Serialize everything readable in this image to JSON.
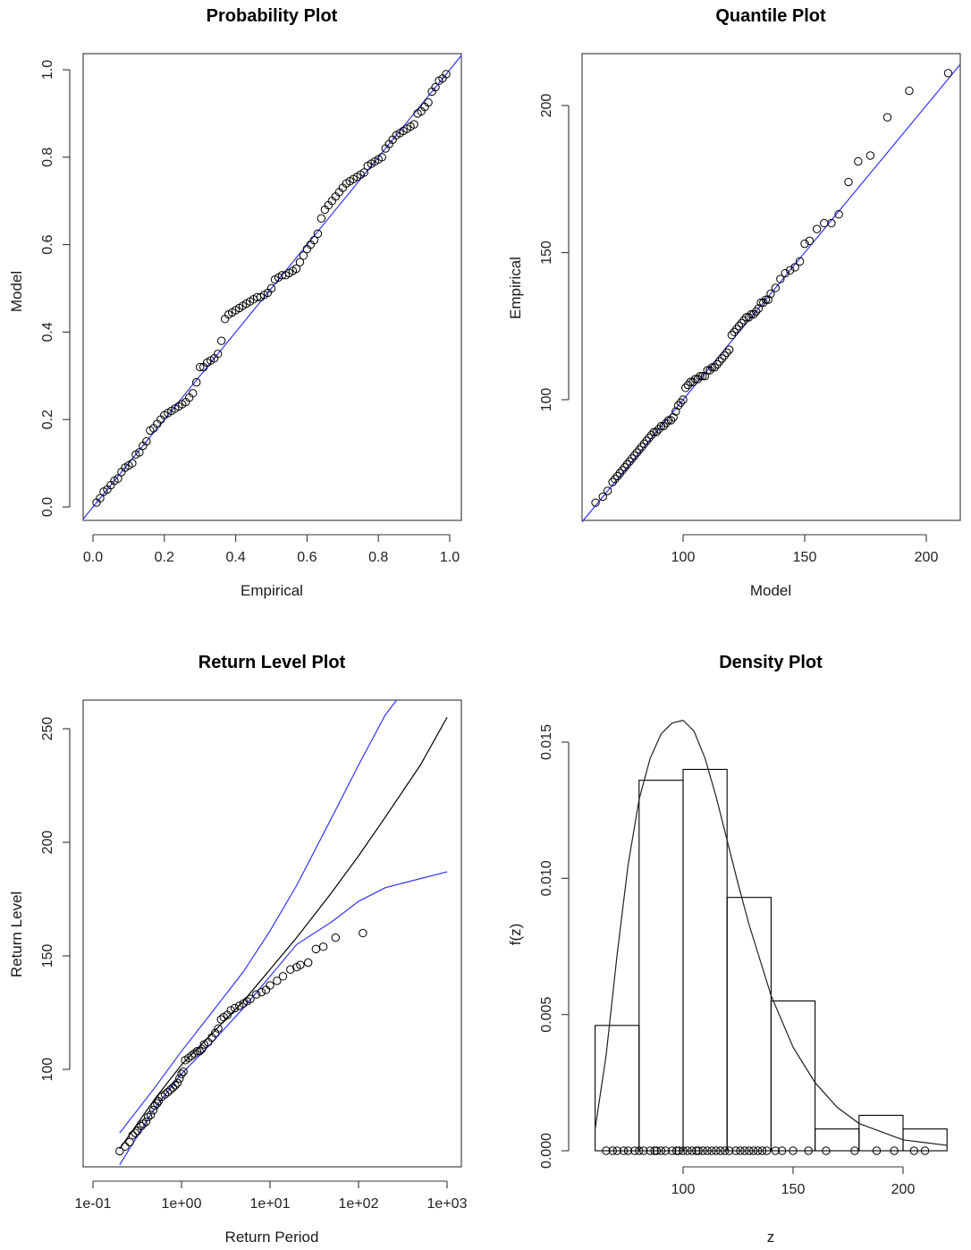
{
  "chart_data": [
    {
      "type": "scatter",
      "title": "Probability Plot",
      "xlabel": "Empirical",
      "ylabel": "Model",
      "xlim": [
        0,
        1
      ],
      "ylim": [
        0,
        1
      ],
      "x_ticks": [
        "0.0",
        "0.2",
        "0.4",
        "0.6",
        "0.8",
        "1.0"
      ],
      "y_ticks": [
        "0.0",
        "0.2",
        "0.4",
        "0.6",
        "0.8",
        "1.0"
      ],
      "reference_line": {
        "x": [
          0,
          1
        ],
        "y": [
          0,
          1
        ],
        "color": "#3333ff"
      },
      "series": [
        {
          "x": [
            0.01,
            0.02,
            0.03,
            0.04,
            0.05,
            0.06,
            0.07,
            0.08,
            0.09,
            0.1,
            0.11,
            0.12,
            0.13,
            0.14,
            0.15,
            0.16,
            0.17,
            0.18,
            0.19,
            0.2,
            0.21,
            0.22,
            0.23,
            0.24,
            0.25,
            0.26,
            0.27,
            0.28,
            0.29,
            0.3,
            0.31,
            0.32,
            0.33,
            0.34,
            0.35,
            0.36,
            0.37,
            0.38,
            0.39,
            0.4,
            0.41,
            0.42,
            0.43,
            0.44,
            0.45,
            0.46,
            0.47,
            0.48,
            0.49,
            0.5,
            0.51,
            0.52,
            0.53,
            0.54,
            0.55,
            0.56,
            0.57,
            0.58,
            0.59,
            0.6,
            0.61,
            0.62,
            0.63,
            0.64,
            0.65,
            0.66,
            0.67,
            0.68,
            0.69,
            0.7,
            0.71,
            0.72,
            0.73,
            0.74,
            0.75,
            0.76,
            0.77,
            0.78,
            0.79,
            0.8,
            0.81,
            0.82,
            0.83,
            0.84,
            0.85,
            0.86,
            0.87,
            0.88,
            0.89,
            0.9,
            0.91,
            0.92,
            0.93,
            0.94,
            0.95,
            0.96,
            0.97,
            0.98,
            0.99
          ],
          "y": [
            0.01,
            0.02,
            0.035,
            0.04,
            0.05,
            0.06,
            0.065,
            0.08,
            0.09,
            0.095,
            0.1,
            0.12,
            0.125,
            0.14,
            0.15,
            0.175,
            0.18,
            0.19,
            0.2,
            0.21,
            0.215,
            0.22,
            0.225,
            0.23,
            0.235,
            0.24,
            0.25,
            0.26,
            0.285,
            0.32,
            0.32,
            0.33,
            0.335,
            0.34,
            0.35,
            0.38,
            0.43,
            0.44,
            0.445,
            0.45,
            0.455,
            0.46,
            0.465,
            0.47,
            0.475,
            0.48,
            0.48,
            0.485,
            0.49,
            0.5,
            0.52,
            0.525,
            0.53,
            0.53,
            0.535,
            0.54,
            0.545,
            0.56,
            0.575,
            0.59,
            0.6,
            0.61,
            0.625,
            0.66,
            0.68,
            0.69,
            0.7,
            0.71,
            0.72,
            0.73,
            0.74,
            0.745,
            0.75,
            0.755,
            0.76,
            0.765,
            0.78,
            0.785,
            0.79,
            0.795,
            0.8,
            0.82,
            0.83,
            0.84,
            0.85,
            0.855,
            0.86,
            0.865,
            0.87,
            0.875,
            0.9,
            0.905,
            0.915,
            0.925,
            0.95,
            0.96,
            0.975,
            0.98,
            0.99
          ]
        }
      ]
    },
    {
      "type": "scatter",
      "title": "Quantile Plot",
      "xlabel": "Model",
      "ylabel": "Empirical",
      "xlim": [
        60,
        215
      ],
      "ylim": [
        60,
        217
      ],
      "x_ticks": [
        "100",
        "150",
        "200"
      ],
      "y_ticks": [
        "100",
        "150",
        "200"
      ],
      "reference_line": {
        "x": [
          60,
          215
        ],
        "y": [
          60,
          215
        ],
        "color": "#3333ff"
      },
      "series": [
        {
          "x": [
            64,
            67,
            69,
            71,
            72,
            73,
            74,
            75,
            76,
            77,
            78,
            79,
            80,
            81,
            82,
            83,
            84,
            85,
            86,
            87,
            88,
            89,
            90,
            91,
            92,
            93,
            94,
            95,
            96,
            97,
            98,
            99,
            100,
            101,
            102,
            103,
            104,
            105,
            106,
            107,
            108,
            109,
            110,
            111,
            112,
            113,
            114,
            115,
            116,
            117,
            118,
            119,
            120,
            121,
            122,
            123,
            124,
            125,
            126,
            127,
            128,
            129,
            130,
            131,
            132,
            133,
            134,
            135,
            136,
            138,
            140,
            142,
            144,
            146,
            148,
            150,
            152,
            155,
            158,
            161,
            164,
            168,
            172,
            177,
            184,
            193,
            209
          ],
          "y": [
            65,
            67,
            69,
            72,
            73,
            74,
            75,
            76,
            77,
            78,
            79,
            80,
            81,
            82,
            83,
            84,
            85,
            86,
            87,
            88,
            89,
            89,
            90,
            91,
            91,
            92,
            93,
            93,
            94,
            96,
            98,
            99,
            100,
            104,
            105,
            106,
            106,
            107,
            107,
            108,
            108,
            108,
            110,
            110,
            111,
            111,
            112,
            113,
            114,
            115,
            116,
            117,
            122,
            123,
            124,
            125,
            126,
            127,
            128,
            128,
            129,
            129,
            130,
            131,
            133,
            133,
            134,
            134,
            136,
            138,
            141,
            143,
            144,
            145,
            147,
            153,
            154,
            158,
            160,
            160,
            163,
            174,
            181,
            183,
            196,
            205,
            211
          ]
        }
      ]
    },
    {
      "type": "line",
      "title": "Return Level Plot",
      "xlabel": "Return Period",
      "ylabel": "Return Level",
      "x_scale": "log",
      "xlim": [
        0.1,
        1000
      ],
      "ylim": [
        60,
        263
      ],
      "x_ticks": [
        "1e-01",
        "1e+00",
        "1e+01",
        "1e+02",
        "1e+03"
      ],
      "y_ticks": [
        "100",
        "150",
        "200",
        "250"
      ],
      "series": [
        {
          "kind": "line",
          "color": "#000000",
          "x": [
            0.2,
            0.5,
            1,
            2,
            5,
            10,
            20,
            50,
            100,
            200,
            500,
            1000
          ],
          "y": [
            65,
            87,
            102,
            114,
            130,
            144,
            158,
            178,
            194,
            211,
            234,
            255
          ]
        },
        {
          "kind": "line",
          "color": "#3333ff",
          "x": [
            0.2,
            0.5,
            1,
            2,
            5,
            10,
            20,
            50,
            100,
            200,
            300
          ],
          "y": [
            72,
            92,
            108,
            123,
            143,
            161,
            181,
            211,
            234,
            256,
            265
          ]
        },
        {
          "kind": "line",
          "color": "#3333ff",
          "x": [
            0.2,
            0.5,
            1,
            2,
            5,
            10,
            20,
            50,
            100,
            200,
            500,
            1000
          ],
          "y": [
            58,
            83,
            98,
            110,
            127,
            141,
            155,
            165,
            174,
            180,
            184,
            187
          ]
        },
        {
          "kind": "points",
          "x": [
            0.2,
            0.23,
            0.26,
            0.28,
            0.3,
            0.32,
            0.35,
            0.37,
            0.4,
            0.42,
            0.45,
            0.48,
            0.5,
            0.53,
            0.55,
            0.6,
            0.65,
            0.7,
            0.75,
            0.8,
            0.85,
            0.9,
            0.95,
            1.0,
            1.05,
            1.1,
            1.2,
            1.3,
            1.4,
            1.5,
            1.6,
            1.7,
            1.8,
            2.0,
            2.2,
            2.4,
            2.6,
            2.8,
            3.0,
            3.3,
            3.6,
            4.0,
            4.5,
            5.0,
            5.5,
            6.0,
            7.0,
            8.0,
            9.0,
            10,
            12,
            14,
            17,
            20,
            22,
            27,
            33,
            40,
            55,
            112
          ],
          "y": [
            64,
            66,
            68,
            71,
            72,
            73,
            75,
            76,
            77,
            79,
            80,
            82,
            84,
            85,
            86,
            88,
            89,
            90,
            91,
            92,
            93,
            94,
            96,
            98,
            99,
            104,
            105,
            106,
            107,
            108,
            108,
            109,
            111,
            112,
            114,
            116,
            118,
            122,
            123,
            124,
            126,
            127,
            128,
            129,
            130,
            131,
            133,
            134,
            135,
            137,
            139,
            141,
            144,
            145,
            146,
            147,
            153,
            154,
            158,
            160
          ]
        }
      ]
    },
    {
      "type": "bar",
      "title": "Density Plot",
      "xlabel": "z",
      "ylabel": "f(z)",
      "xlim": [
        60,
        222
      ],
      "ylim": [
        0,
        0.0165
      ],
      "x_ticks": [
        "100",
        "150",
        "200"
      ],
      "y_ticks": [
        "0.000",
        "0.005",
        "0.010",
        "0.015"
      ],
      "bins": [
        [
          60,
          80
        ],
        [
          80,
          100
        ],
        [
          100,
          120
        ],
        [
          120,
          140
        ],
        [
          140,
          160
        ],
        [
          160,
          180
        ],
        [
          180,
          200
        ],
        [
          200,
          220
        ]
      ],
      "values": [
        0.0046,
        0.0136,
        0.014,
        0.0093,
        0.0055,
        0.0008,
        0.0013,
        0.0008
      ],
      "density_curve": {
        "x": [
          60,
          65,
          70,
          75,
          80,
          85,
          90,
          95,
          100,
          105,
          110,
          115,
          120,
          125,
          130,
          140,
          150,
          160,
          170,
          180,
          190,
          200,
          210,
          220
        ],
        "y": [
          0.0008,
          0.0035,
          0.0072,
          0.0105,
          0.0129,
          0.0144,
          0.0153,
          0.0157,
          0.0158,
          0.0154,
          0.0144,
          0.013,
          0.0114,
          0.0098,
          0.0083,
          0.0057,
          0.0038,
          0.0025,
          0.0016,
          0.001,
          0.0007,
          0.0004,
          0.0003,
          0.0002
        ]
      },
      "rug": [
        65,
        68,
        70,
        73,
        75,
        78,
        80,
        82,
        85,
        87,
        88,
        90,
        92,
        95,
        97,
        98,
        100,
        102,
        104,
        106,
        107,
        109,
        111,
        113,
        115,
        117,
        119,
        121,
        124,
        126,
        128,
        130,
        132,
        134,
        136,
        138,
        142,
        145,
        150,
        157,
        165,
        178,
        188,
        196,
        205,
        210
      ]
    }
  ]
}
